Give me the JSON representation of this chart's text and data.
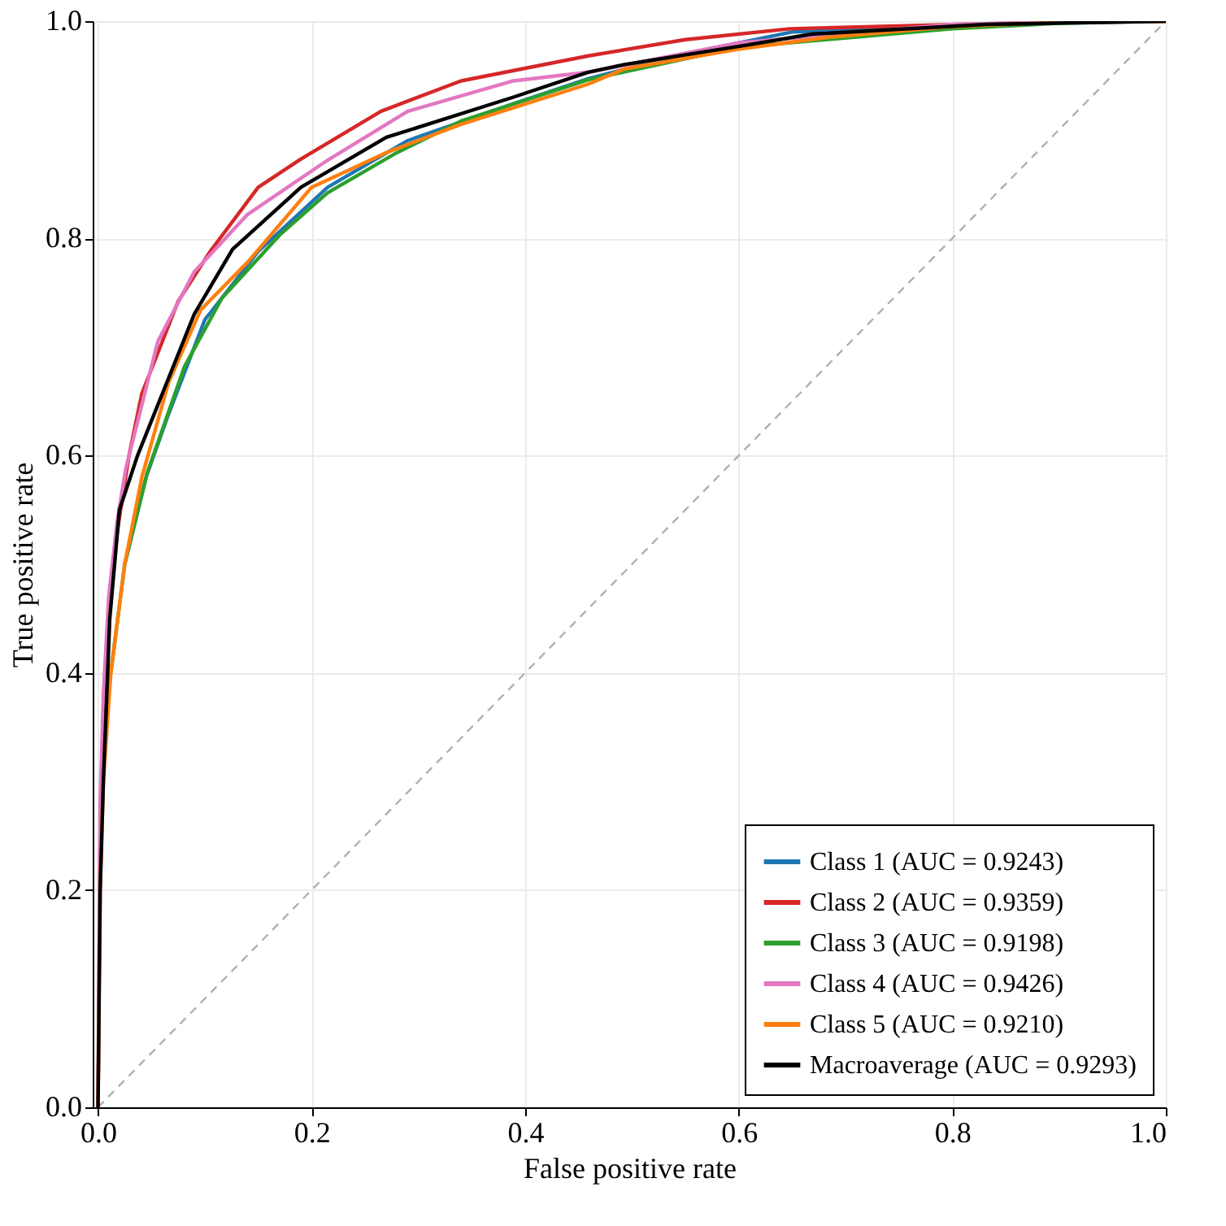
{
  "chart_data": {
    "type": "line",
    "xlabel": "False positive rate",
    "ylabel": "True positive rate",
    "xlim": [
      -0.005,
      1.0
    ],
    "ylim": [
      0,
      1.0
    ],
    "xticks": [
      {
        "value": 0,
        "label": "0.0"
      },
      {
        "value": 0.2,
        "label": "0.2"
      },
      {
        "value": 0.4,
        "label": "0.4"
      },
      {
        "value": 0.6,
        "label": "0.6"
      },
      {
        "value": 0.8,
        "label": "0.8"
      },
      {
        "value": 1.0,
        "label": "1.0"
      }
    ],
    "yticks": [
      {
        "value": 0,
        "label": "0.0"
      },
      {
        "value": 0.2,
        "label": "0.2"
      },
      {
        "value": 0.4,
        "label": "0.4"
      },
      {
        "value": 0.6,
        "label": "0.6"
      },
      {
        "value": 0.8,
        "label": "0.8"
      },
      {
        "value": 1.0,
        "label": "1.0"
      }
    ],
    "grid": true,
    "legend": "bottom right",
    "line_style": "solid",
    "marker": "none",
    "series": [
      {
        "name": "Class 1 (AUC = 0.9243)",
        "color": "#1f77b4",
        "x": [
          0.025,
          0.045,
          0.066,
          0.1,
          0.15,
          0.215,
          0.29,
          0.389,
          0.459,
          0.55,
          0.65,
          0.8
        ],
        "values": [
          0.5,
          0.58,
          0.638,
          0.725,
          0.788,
          0.847,
          0.89,
          0.924,
          0.947,
          0.97,
          0.99,
          0.996
        ]
      },
      {
        "name": "Class 2 (AUC = 0.9359)",
        "color": "#d62728",
        "x": [
          0,
          0.002,
          0.005,
          0.01,
          0.018,
          0.029,
          0.041,
          0.075,
          0.105,
          0.15,
          0.19,
          0.265,
          0.34,
          0.459,
          0.55,
          0.648,
          0.807,
          0.9,
          1.0
        ],
        "values": [
          0,
          0.25,
          0.35,
          0.45,
          0.53,
          0.6,
          0.657,
          0.742,
          0.788,
          0.847,
          0.873,
          0.917,
          0.945,
          0.968,
          0.983,
          0.993,
          0.997,
          0.999,
          1.0
        ]
      },
      {
        "name": "Class 3 (AUC = 0.9198)",
        "color": "#2ca02c",
        "x": [
          0.012,
          0.025,
          0.046,
          0.081,
          0.116,
          0.17,
          0.215,
          0.28,
          0.34,
          0.459,
          0.6,
          0.8,
          0.9,
          1.0
        ],
        "values": [
          0.4,
          0.5,
          0.584,
          0.682,
          0.745,
          0.803,
          0.842,
          0.879,
          0.908,
          0.946,
          0.976,
          0.993,
          0.998,
          1.0
        ]
      },
      {
        "name": "Class 4 (AUC = 0.9426)",
        "color": "#e377c2",
        "x": [
          0,
          0.002,
          0.005,
          0.01,
          0.018,
          0.026,
          0.056,
          0.09,
          0.14,
          0.215,
          0.29,
          0.389,
          0.459,
          0.6,
          0.8,
          0.9,
          1.0
        ],
        "values": [
          0,
          0.28,
          0.38,
          0.47,
          0.54,
          0.588,
          0.705,
          0.769,
          0.822,
          0.872,
          0.917,
          0.945,
          0.953,
          0.98,
          0.997,
          0.999,
          1.0
        ]
      },
      {
        "name": "Class 5 (AUC = 0.9210)",
        "color": "#ff7f0e",
        "x": [
          0,
          0.002,
          0.005,
          0.012,
          0.025,
          0.041,
          0.066,
          0.096,
          0.14,
          0.2,
          0.27,
          0.34,
          0.459,
          0.493,
          0.598,
          0.683,
          0.8,
          0.9,
          1.0
        ],
        "values": [
          0,
          0.2,
          0.3,
          0.4,
          0.5,
          0.58,
          0.667,
          0.734,
          0.778,
          0.847,
          0.879,
          0.905,
          0.942,
          0.956,
          0.974,
          0.985,
          0.995,
          0.999,
          1.0
        ]
      },
      {
        "name": "Macroaverage (AUC = 0.9293)",
        "color": "#000000",
        "x": [
          0,
          0.002,
          0.005,
          0.011,
          0.02,
          0.037,
          0.09,
          0.126,
          0.19,
          0.27,
          0.389,
          0.459,
          0.493,
          0.608,
          0.668,
          0.832,
          1.0
        ],
        "values": [
          0,
          0.2,
          0.3,
          0.45,
          0.55,
          0.6,
          0.73,
          0.79,
          0.847,
          0.893,
          0.93,
          0.953,
          0.96,
          0.978,
          0.988,
          0.997,
          1.0
        ]
      },
      {
        "color": "#b0b0b0",
        "line_style": "dashed",
        "x": [
          0,
          1.0
        ],
        "values": [
          0,
          1.0
        ]
      }
    ]
  }
}
